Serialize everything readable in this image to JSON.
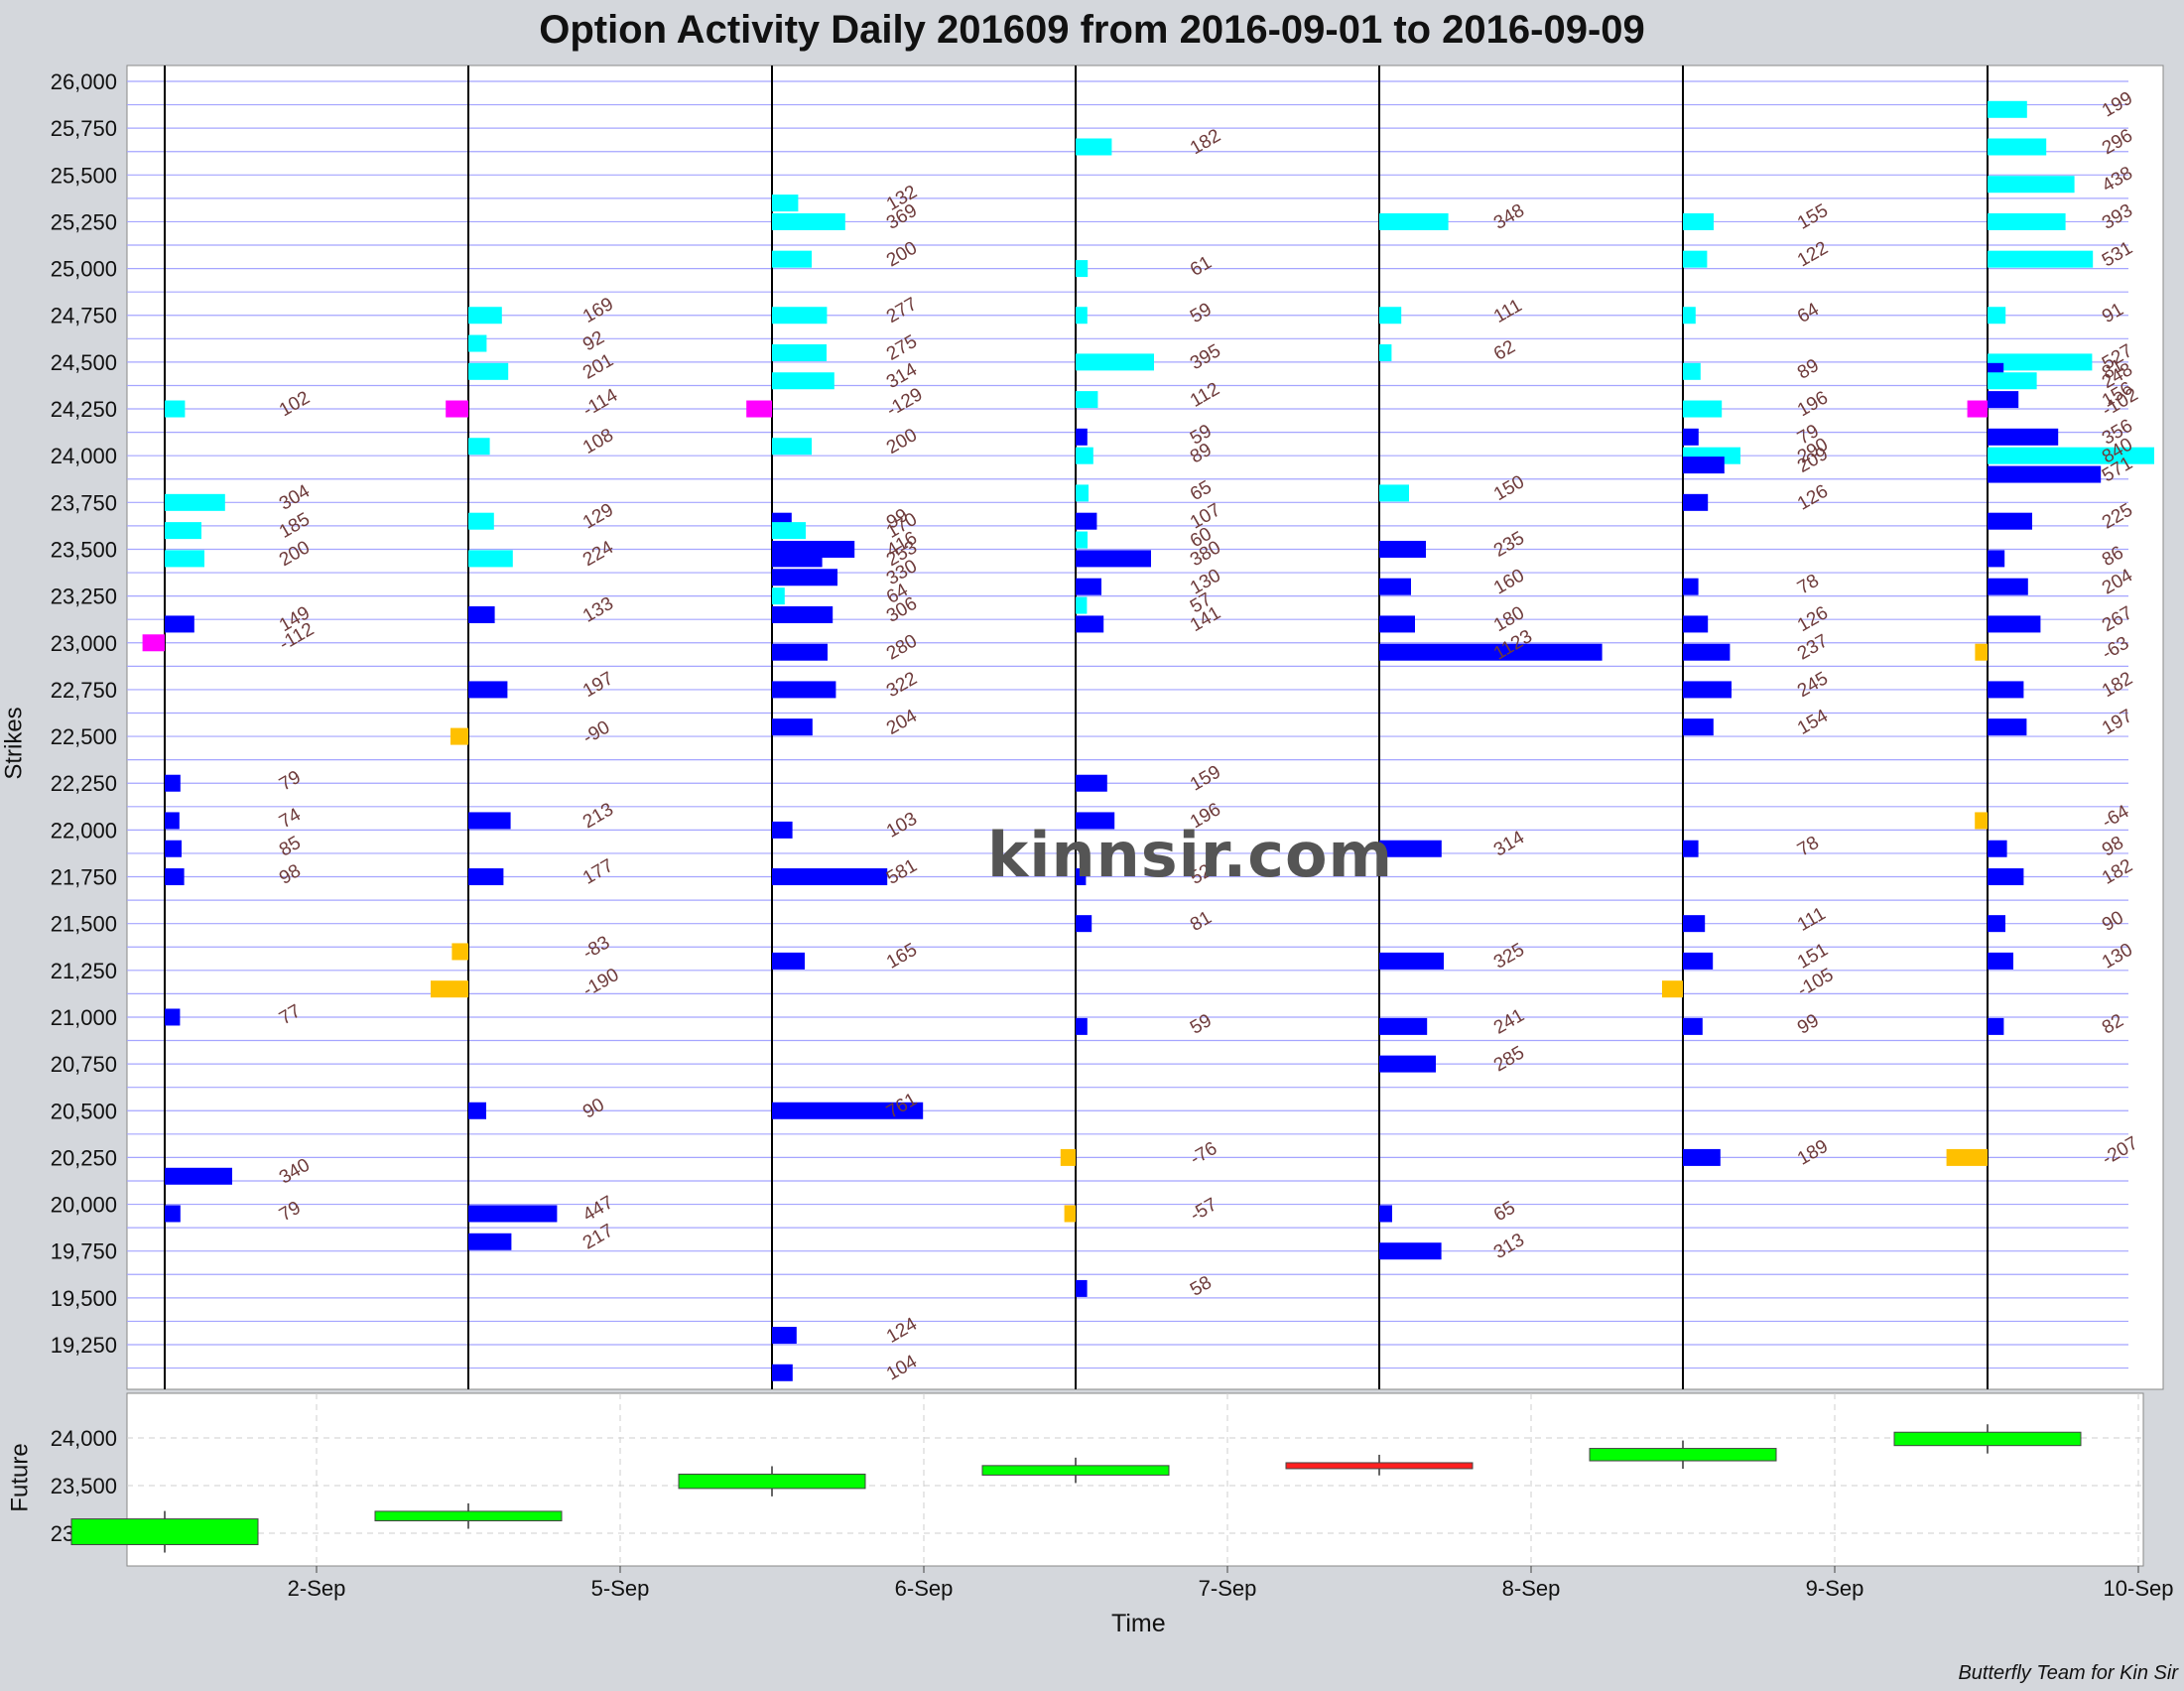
{
  "title": "Option Activity Daily 201609 from 2016-09-01 to 2016-09-09",
  "credit": "Butterfly Team for Kin Sir",
  "watermark": "kinnsir.com",
  "colors": {
    "call_volume": "#00ffff",
    "put_volume": "#0000ff",
    "call_negative": "#ff00ff",
    "put_negative": "#ffc000",
    "grid": "#a5a5ff",
    "future_up": "#00ff00",
    "future_down": "#ff2020"
  },
  "chart_data": [
    {
      "type": "bar",
      "ylabel": "Strikes",
      "xlabel": "Time",
      "ylim": [
        19000,
        26100
      ],
      "y_ticks": [
        "26,000",
        "25,750",
        "25,500",
        "25,250",
        "25,000",
        "24,750",
        "24,500",
        "24,250",
        "24,000",
        "23,750",
        "23,500",
        "23,250",
        "23,000",
        "22,750",
        "22,500",
        "22,250",
        "22,000",
        "21,750",
        "21,500",
        "21,250",
        "21,000",
        "20,750",
        "20,500",
        "20,250",
        "20,000",
        "19,750",
        "19,500",
        "19,250"
      ],
      "days": [
        "2016-09-01",
        "2016-09-02",
        "2016-09-05",
        "2016-09-06",
        "2016-09-07",
        "2016-09-08",
        "2016-09-09"
      ],
      "series": [
        {
          "name": "",
          "day": 0,
          "bars": [
            {
              "strike": 24250,
              "value": 102,
              "kind": "call"
            },
            {
              "strike": 23750,
              "value": 304,
              "kind": "call"
            },
            {
              "strike": 23600,
              "value": 185,
              "kind": "call"
            },
            {
              "strike": 23450,
              "value": 200,
              "kind": "call"
            },
            {
              "strike": 23100,
              "value": 149,
              "kind": "put"
            },
            {
              "strike": 23000,
              "value": -112,
              "kind": "call"
            },
            {
              "strike": 22250,
              "value": 79,
              "kind": "put"
            },
            {
              "strike": 22050,
              "value": 74,
              "kind": "put"
            },
            {
              "strike": 21900,
              "value": 85,
              "kind": "put"
            },
            {
              "strike": 21750,
              "value": 98,
              "kind": "put"
            },
            {
              "strike": 21000,
              "value": 77,
              "kind": "put"
            },
            {
              "strike": 20150,
              "value": 340,
              "kind": "put"
            },
            {
              "strike": 19950,
              "value": 79,
              "kind": "put"
            }
          ]
        },
        {
          "name": "",
          "day": 1,
          "bars": [
            {
              "strike": 24750,
              "value": 169,
              "kind": "call"
            },
            {
              "strike": 24600,
              "value": 92,
              "kind": "call"
            },
            {
              "strike": 24450,
              "value": 201,
              "kind": "call"
            },
            {
              "strike": 24250,
              "value": -114,
              "kind": "call"
            },
            {
              "strike": 24050,
              "value": 108,
              "kind": "call"
            },
            {
              "strike": 23650,
              "value": 129,
              "kind": "call"
            },
            {
              "strike": 23450,
              "value": 224,
              "kind": "call"
            },
            {
              "strike": 23150,
              "value": 133,
              "kind": "put"
            },
            {
              "strike": 22750,
              "value": 197,
              "kind": "put"
            },
            {
              "strike": 22500,
              "value": -90,
              "kind": "neg"
            },
            {
              "strike": 22050,
              "value": 213,
              "kind": "put"
            },
            {
              "strike": 21750,
              "value": 177,
              "kind": "put"
            },
            {
              "strike": 21350,
              "value": -83,
              "kind": "neg"
            },
            {
              "strike": 21150,
              "value": -190,
              "kind": "neg"
            },
            {
              "strike": 20500,
              "value": 90,
              "kind": "put"
            },
            {
              "strike": 19950,
              "value": 447,
              "kind": "put"
            },
            {
              "strike": 19800,
              "value": 217,
              "kind": "put"
            }
          ]
        },
        {
          "name": "",
          "day": 2,
          "bars": [
            {
              "strike": 25350,
              "value": 132,
              "kind": "call"
            },
            {
              "strike": 25250,
              "value": 369,
              "kind": "call"
            },
            {
              "strike": 25050,
              "value": 200,
              "kind": "call"
            },
            {
              "strike": 24750,
              "value": 277,
              "kind": "call"
            },
            {
              "strike": 24550,
              "value": 275,
              "kind": "call"
            },
            {
              "strike": 24400,
              "value": 314,
              "kind": "call"
            },
            {
              "strike": 24250,
              "value": -129,
              "kind": "call"
            },
            {
              "strike": 24050,
              "value": 200,
              "kind": "call"
            },
            {
              "strike": 23650,
              "value": 99,
              "kind": "put"
            },
            {
              "strike": 23600,
              "value": 170,
              "kind": "call"
            },
            {
              "strike": 23500,
              "value": 416,
              "kind": "put"
            },
            {
              "strike": 23450,
              "value": 253,
              "kind": "put"
            },
            {
              "strike": 23350,
              "value": 330,
              "kind": "put"
            },
            {
              "strike": 23250,
              "value": 64,
              "kind": "call"
            },
            {
              "strike": 23150,
              "value": 306,
              "kind": "put"
            },
            {
              "strike": 22950,
              "value": 280,
              "kind": "put"
            },
            {
              "strike": 22750,
              "value": 322,
              "kind": "put"
            },
            {
              "strike": 22550,
              "value": 204,
              "kind": "put"
            },
            {
              "strike": 22000,
              "value": 103,
              "kind": "put"
            },
            {
              "strike": 21750,
              "value": 581,
              "kind": "put"
            },
            {
              "strike": 21300,
              "value": 165,
              "kind": "put"
            },
            {
              "strike": 20500,
              "value": 761,
              "kind": "put"
            },
            {
              "strike": 19300,
              "value": 124,
              "kind": "put"
            },
            {
              "strike": 19100,
              "value": 104,
              "kind": "put"
            }
          ]
        },
        {
          "name": "",
          "day": 3,
          "bars": [
            {
              "strike": 25650,
              "value": 182,
              "kind": "call"
            },
            {
              "strike": 25000,
              "value": 61,
              "kind": "call"
            },
            {
              "strike": 24750,
              "value": 59,
              "kind": "call"
            },
            {
              "strike": 24500,
              "value": 395,
              "kind": "call"
            },
            {
              "strike": 24300,
              "value": 112,
              "kind": "call"
            },
            {
              "strike": 24100,
              "value": 59,
              "kind": "put"
            },
            {
              "strike": 24000,
              "value": 89,
              "kind": "call"
            },
            {
              "strike": 23800,
              "value": 65,
              "kind": "call"
            },
            {
              "strike": 23650,
              "value": 107,
              "kind": "put"
            },
            {
              "strike": 23550,
              "value": 60,
              "kind": "call"
            },
            {
              "strike": 23450,
              "value": 380,
              "kind": "put"
            },
            {
              "strike": 23300,
              "value": 130,
              "kind": "put"
            },
            {
              "strike": 23200,
              "value": 57,
              "kind": "call"
            },
            {
              "strike": 23100,
              "value": 141,
              "kind": "put"
            },
            {
              "strike": 22250,
              "value": 159,
              "kind": "put"
            },
            {
              "strike": 22050,
              "value": 196,
              "kind": "put"
            },
            {
              "strike": 21750,
              "value": 52,
              "kind": "put"
            },
            {
              "strike": 21500,
              "value": 81,
              "kind": "put"
            },
            {
              "strike": 20950,
              "value": 59,
              "kind": "put"
            },
            {
              "strike": 20250,
              "value": -76,
              "kind": "neg"
            },
            {
              "strike": 19950,
              "value": -57,
              "kind": "neg"
            },
            {
              "strike": 19550,
              "value": 58,
              "kind": "put"
            }
          ]
        },
        {
          "name": "",
          "day": 4,
          "bars": [
            {
              "strike": 25250,
              "value": 348,
              "kind": "call"
            },
            {
              "strike": 24750,
              "value": 111,
              "kind": "call"
            },
            {
              "strike": 24550,
              "value": 62,
              "kind": "call"
            },
            {
              "strike": 23800,
              "value": 150,
              "kind": "call"
            },
            {
              "strike": 23500,
              "value": 235,
              "kind": "put"
            },
            {
              "strike": 23300,
              "value": 160,
              "kind": "put"
            },
            {
              "strike": 23100,
              "value": 180,
              "kind": "put"
            },
            {
              "strike": 22950,
              "value": 1123,
              "kind": "put"
            },
            {
              "strike": 21900,
              "value": 314,
              "kind": "put"
            },
            {
              "strike": 21300,
              "value": 325,
              "kind": "put"
            },
            {
              "strike": 20950,
              "value": 241,
              "kind": "put"
            },
            {
              "strike": 20750,
              "value": 285,
              "kind": "put"
            },
            {
              "strike": 19950,
              "value": 65,
              "kind": "put"
            },
            {
              "strike": 19750,
              "value": 313,
              "kind": "put"
            }
          ]
        },
        {
          "name": "",
          "day": 5,
          "bars": [
            {
              "strike": 25250,
              "value": 155,
              "kind": "call"
            },
            {
              "strike": 25050,
              "value": 122,
              "kind": "call"
            },
            {
              "strike": 24750,
              "value": 64,
              "kind": "call"
            },
            {
              "strike": 24450,
              "value": 89,
              "kind": "call"
            },
            {
              "strike": 24250,
              "value": 196,
              "kind": "call"
            },
            {
              "strike": 24100,
              "value": 79,
              "kind": "put"
            },
            {
              "strike": 24000,
              "value": 290,
              "kind": "call"
            },
            {
              "strike": 23950,
              "value": 209,
              "kind": "put"
            },
            {
              "strike": 23750,
              "value": 126,
              "kind": "put"
            },
            {
              "strike": 23300,
              "value": 78,
              "kind": "put"
            },
            {
              "strike": 23100,
              "value": 126,
              "kind": "put"
            },
            {
              "strike": 22950,
              "value": 237,
              "kind": "put"
            },
            {
              "strike": 22750,
              "value": 245,
              "kind": "put"
            },
            {
              "strike": 22550,
              "value": 154,
              "kind": "put"
            },
            {
              "strike": 21900,
              "value": 78,
              "kind": "put"
            },
            {
              "strike": 21500,
              "value": 111,
              "kind": "put"
            },
            {
              "strike": 21300,
              "value": 151,
              "kind": "put"
            },
            {
              "strike": 21150,
              "value": -105,
              "kind": "neg"
            },
            {
              "strike": 20950,
              "value": 99,
              "kind": "put"
            },
            {
              "strike": 20250,
              "value": 189,
              "kind": "put"
            }
          ]
        },
        {
          "name": "",
          "day": 6,
          "bars": [
            {
              "strike": 25850,
              "value": 199,
              "kind": "call"
            },
            {
              "strike": 25650,
              "value": 296,
              "kind": "call"
            },
            {
              "strike": 25450,
              "value": 438,
              "kind": "call"
            },
            {
              "strike": 25250,
              "value": 393,
              "kind": "call"
            },
            {
              "strike": 25050,
              "value": 531,
              "kind": "call"
            },
            {
              "strike": 24750,
              "value": 91,
              "kind": "call"
            },
            {
              "strike": 24500,
              "value": 527,
              "kind": "call"
            },
            {
              "strike": 24450,
              "value": 81,
              "kind": "put"
            },
            {
              "strike": 24400,
              "value": 248,
              "kind": "call"
            },
            {
              "strike": 24300,
              "value": 156,
              "kind": "put"
            },
            {
              "strike": 24250,
              "value": -102,
              "kind": "call"
            },
            {
              "strike": 24100,
              "value": 356,
              "kind": "put"
            },
            {
              "strike": 24000,
              "value": 840,
              "kind": "call"
            },
            {
              "strike": 23900,
              "value": 571,
              "kind": "put"
            },
            {
              "strike": 23650,
              "value": 225,
              "kind": "put"
            },
            {
              "strike": 23450,
              "value": 86,
              "kind": "put"
            },
            {
              "strike": 23300,
              "value": 204,
              "kind": "put"
            },
            {
              "strike": 23100,
              "value": 267,
              "kind": "put"
            },
            {
              "strike": 22950,
              "value": -63,
              "kind": "neg"
            },
            {
              "strike": 22750,
              "value": 182,
              "kind": "put"
            },
            {
              "strike": 22550,
              "value": 197,
              "kind": "put"
            },
            {
              "strike": 22050,
              "value": -64,
              "kind": "neg"
            },
            {
              "strike": 21900,
              "value": 98,
              "kind": "put"
            },
            {
              "strike": 21750,
              "value": 182,
              "kind": "put"
            },
            {
              "strike": 21500,
              "value": 90,
              "kind": "put"
            },
            {
              "strike": 21300,
              "value": 130,
              "kind": "put"
            },
            {
              "strike": 20950,
              "value": 82,
              "kind": "put"
            },
            {
              "strike": 20250,
              "value": -207,
              "kind": "neg"
            }
          ]
        }
      ]
    },
    {
      "type": "bar",
      "ylabel": "Future",
      "ylim": [
        22800,
        24300
      ],
      "y_ticks": [
        "24,000",
        "23,500",
        "23,000"
      ],
      "x_ticks": [
        "2-Sep",
        "5-Sep",
        "6-Sep",
        "7-Sep",
        "8-Sep",
        "9-Sep",
        "10-Sep"
      ],
      "candles": [
        {
          "day": "2016-09-01",
          "open": 22880,
          "close": 23150,
          "up": true
        },
        {
          "day": "2016-09-02",
          "open": 23130,
          "close": 23230,
          "up": true
        },
        {
          "day": "2016-09-05",
          "open": 23470,
          "close": 23620,
          "up": true
        },
        {
          "day": "2016-09-06",
          "open": 23610,
          "close": 23710,
          "up": true
        },
        {
          "day": "2016-09-07",
          "open": 23740,
          "close": 23690,
          "up": false
        },
        {
          "day": "2016-09-08",
          "open": 23760,
          "close": 23890,
          "up": true
        },
        {
          "day": "2016-09-09",
          "open": 23920,
          "close": 24060,
          "up": true
        }
      ]
    }
  ]
}
